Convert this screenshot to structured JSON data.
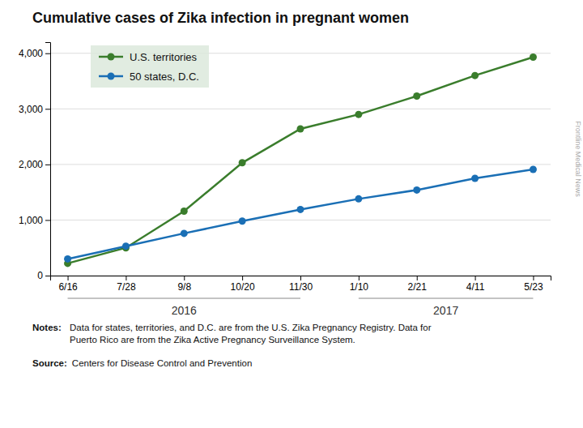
{
  "chart_data": {
    "type": "line",
    "title": "Cumulative cases of Zika infection in pregnant women",
    "categories": [
      "6/16",
      "7/28",
      "9/8",
      "10/20",
      "11/30",
      "1/10",
      "2/21",
      "4/11",
      "5/23"
    ],
    "series": [
      {
        "name": "U.S. territories",
        "color": "#3a7d2c",
        "values": [
          220,
          500,
          1160,
          2030,
          2640,
          2900,
          3230,
          3600,
          3930
        ]
      },
      {
        "name": "50 states, D.C.",
        "color": "#1a6fb5",
        "values": [
          300,
          530,
          760,
          980,
          1190,
          1380,
          1540,
          1750,
          1910
        ]
      }
    ],
    "ylim": [
      0,
      4200
    ],
    "yticks": [
      0,
      {
        "value": 1000,
        "label": "1,000"
      },
      {
        "value": 2000,
        "label": "2,000"
      },
      {
        "value": 3000,
        "label": "3,000"
      },
      {
        "value": 4000,
        "label": "4,000"
      }
    ],
    "grid": true,
    "legend": "upper left",
    "marker": "circle",
    "annotations": [
      {
        "text": "2016",
        "from": "6/16",
        "to": "11/30"
      },
      {
        "text": "2017",
        "from": "1/10",
        "to": "5/23"
      },
      {
        "label": "Notes:",
        "text": "Data for states, territories, and D.C. are from the U.S. Zika Pregnancy Registry. Data for\nPuerto Rico are from the Zika Active Pregnancy Surveillance System."
      },
      {
        "label": "Source:",
        "text": "Centers for Disease Control and Prevention"
      },
      {
        "text": "Frontline Medical News"
      }
    ]
  }
}
